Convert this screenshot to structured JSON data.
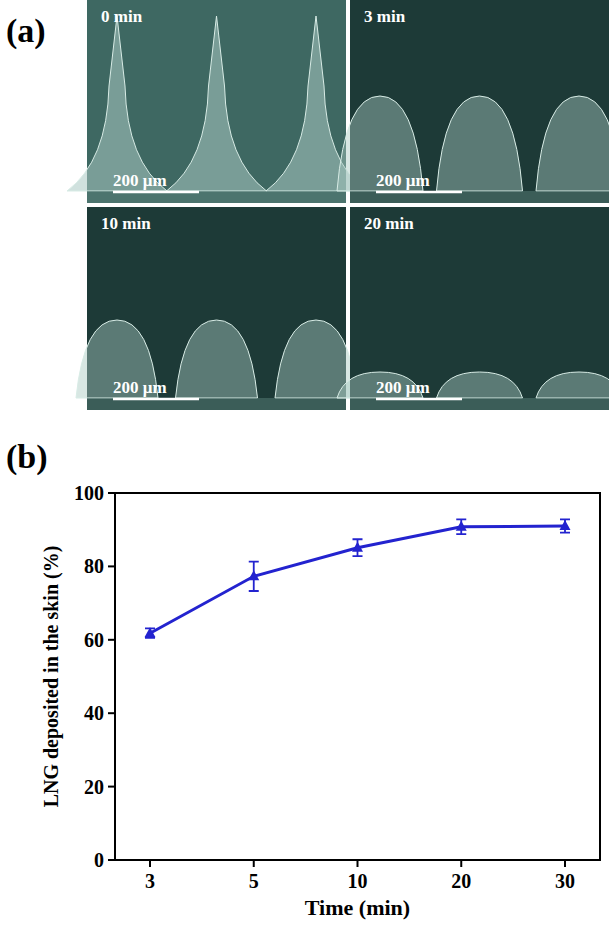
{
  "figure": {
    "panel_labels": [
      "(a)",
      "(b)"
    ]
  },
  "micrographs": {
    "images": [
      {
        "label": "0 min",
        "scale_bar": "200 μm"
      },
      {
        "label": "3 min",
        "scale_bar": "200 μm"
      },
      {
        "label": "10 min",
        "scale_bar": "200 μm"
      },
      {
        "label": "20 min",
        "scale_bar": "200 μm"
      }
    ]
  },
  "chart_data": {
    "type": "line",
    "x_label": "Time (min)",
    "y_label": "LNG deposited in the skin (%)",
    "categories": [
      "3",
      "5",
      "10",
      "20",
      "30"
    ],
    "values": [
      61.8,
      77.3,
      85.1,
      90.8,
      91.0
    ],
    "errors": [
      1.3,
      4.0,
      2.3,
      2.0,
      1.8
    ],
    "color": "#2323cf",
    "marker": "triangle",
    "grid": false,
    "ylim": [
      0,
      100
    ],
    "yticks": [
      0,
      20,
      40,
      60,
      80,
      100
    ]
  }
}
